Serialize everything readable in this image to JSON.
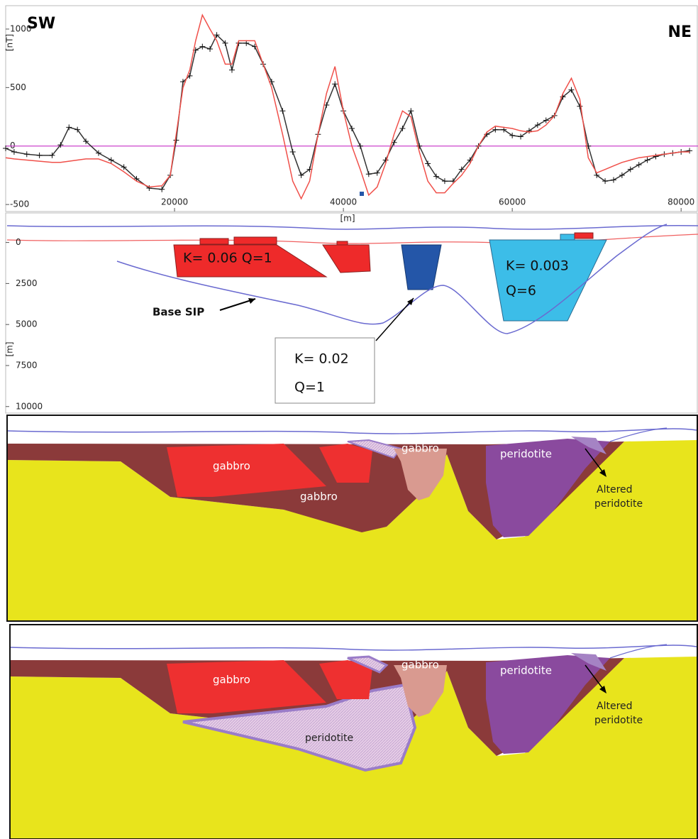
{
  "chart_data": [
    {
      "type": "line",
      "left_label": "SW",
      "right_label": "NE",
      "y_label": "[nT]",
      "x_label": "[m]",
      "xlim": [
        0,
        82000
      ],
      "xticks": [
        20000,
        40000,
        60000,
        80000
      ],
      "ylim": [
        -560,
        1200
      ],
      "yticks": [
        -500,
        0,
        500,
        1000
      ],
      "zero_line_color": "#cc44cc",
      "x": [
        0,
        1000,
        2500,
        4000,
        5500,
        6500,
        7500,
        8500,
        9500,
        11000,
        12500,
        14000,
        15500,
        17000,
        18500,
        19500,
        20200,
        21000,
        21800,
        22500,
        23300,
        24200,
        25000,
        26000,
        26800,
        27600,
        28500,
        29500,
        30500,
        31500,
        32800,
        34000,
        35000,
        36000,
        37000,
        38000,
        39000,
        40000,
        41000,
        42000,
        43000,
        44000,
        45000,
        46000,
        47000,
        48000,
        49000,
        50000,
        51000,
        52000,
        53000,
        54000,
        55000,
        56000,
        57000,
        58000,
        59000,
        60000,
        61000,
        62000,
        63000,
        64000,
        65000,
        66000,
        67000,
        68000,
        69000,
        70000,
        71000,
        72000,
        73000,
        74000,
        75000,
        76000,
        77000,
        78000,
        79000,
        80000,
        81000
      ],
      "series": [
        {
          "color": "#333333",
          "markers": true,
          "values": [
            -20,
            -50,
            -70,
            -80,
            -80,
            10,
            160,
            140,
            40,
            -60,
            -120,
            -180,
            -280,
            -360,
            -370,
            -250,
            50,
            550,
            600,
            820,
            850,
            830,
            950,
            880,
            650,
            880,
            880,
            850,
            700,
            550,
            300,
            -50,
            -250,
            -200,
            100,
            350,
            530,
            300,
            150,
            0,
            -240,
            -230,
            -120,
            30,
            150,
            300,
            0,
            -150,
            -260,
            -300,
            -300,
            -200,
            -120,
            0,
            100,
            140,
            140,
            90,
            80,
            130,
            180,
            220,
            260,
            420,
            480,
            340,
            0,
            -250,
            -300,
            -290,
            -250,
            -200,
            -160,
            -120,
            -90,
            -70,
            -60,
            -50,
            -40
          ]
        },
        {
          "color": "#f0504a",
          "markers": false,
          "values": [
            -100,
            -110,
            -120,
            -130,
            -140,
            -140,
            -130,
            -120,
            -110,
            -110,
            -150,
            -220,
            -300,
            -350,
            -340,
            -250,
            100,
            500,
            650,
            900,
            1120,
            1000,
            900,
            700,
            700,
            900,
            900,
            900,
            700,
            500,
            100,
            -300,
            -450,
            -300,
            100,
            450,
            680,
            300,
            0,
            -200,
            -420,
            -350,
            -150,
            100,
            300,
            250,
            -50,
            -300,
            -400,
            -400,
            -320,
            -250,
            -150,
            0,
            120,
            170,
            160,
            150,
            130,
            120,
            130,
            180,
            260,
            450,
            580,
            400,
            -100,
            -230,
            -200,
            -170,
            -140,
            -120,
            -100,
            -90,
            -80,
            -70,
            -60,
            -50,
            -50
          ]
        }
      ]
    },
    {
      "type": "section",
      "y_label": "[m]",
      "ylim": [
        10400,
        -1800
      ],
      "yticks": [
        0,
        2500,
        5000,
        7500,
        10000
      ],
      "annotations": [
        "K= 0.06  Q=1",
        "K= 0.003",
        "Q=6",
        "K= 0.02",
        "Q=1",
        "Base SIP"
      ]
    }
  ],
  "sections": [
    {
      "labels": [
        "gabbro",
        "gabbro",
        "gabbro",
        "peridotite",
        "Altered",
        "peridotite"
      ]
    },
    {
      "labels": [
        "gabbro",
        "peridotite",
        "gabbro",
        "peridotite",
        "Altered",
        "peridotite"
      ]
    }
  ]
}
